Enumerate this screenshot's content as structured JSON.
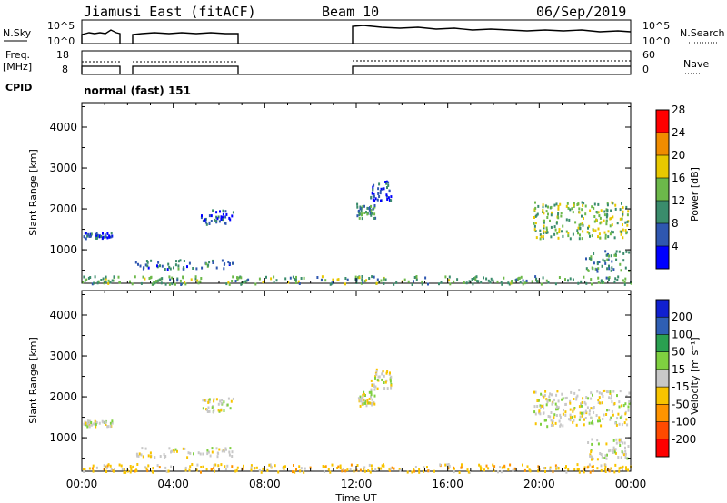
{
  "header": {
    "station": "Jiamusi East (fitACF)",
    "beam": "Beam 10",
    "date": "06/Sep/2019"
  },
  "strips": {
    "nsky_label": "N.Sky",
    "nsky_ticks": [
      "10^5",
      "10^0"
    ],
    "nsearch_label": "N.Search",
    "nsearch_ticks": [
      "10^5",
      "10^0"
    ],
    "freq_label_1": "Freq.",
    "freq_label_2": "[MHz]",
    "freq_ticks": [
      "18",
      "8"
    ],
    "nave_label": "Nave",
    "nave_ticks": [
      "60",
      "0"
    ],
    "cpid_label": "CPID",
    "cpid_value": "normal (fast) 151"
  },
  "chart_data": [
    {
      "type": "heatmap",
      "panel": "power",
      "xlabel": "Time UT",
      "ylabel": "Slant Range [km]",
      "x_range_hours": [
        0,
        24
      ],
      "y_range_km": [
        180,
        4600
      ],
      "yticks": [
        "1000",
        "2000",
        "3000",
        "4000"
      ],
      "colorbar_label": "Power [dB]",
      "colorbar_ticks": [
        "4",
        "8",
        "12",
        "16",
        "20",
        "24",
        "28"
      ],
      "colorbar_colors": [
        "#0000ff",
        "#2f57b0",
        "#3a8c6c",
        "#6cb84a",
        "#e8c800",
        "#f08c00",
        "#ff0000"
      ],
      "regions": [
        {
          "t0": 0.05,
          "t1": 1.3,
          "r0": 1300,
          "r1": 1450,
          "value": 8
        },
        {
          "t0": 2.3,
          "t1": 6.6,
          "r0": 550,
          "r1": 780,
          "value": 10
        },
        {
          "t0": 5.2,
          "t1": 6.6,
          "r0": 1650,
          "r1": 2000,
          "value": 8
        },
        {
          "t0": 12.0,
          "t1": 12.8,
          "r0": 1800,
          "r1": 2150,
          "value": 12
        },
        {
          "t0": 12.6,
          "t1": 13.5,
          "r0": 2200,
          "r1": 2700,
          "value": 8
        },
        {
          "t0": 19.7,
          "t1": 23.9,
          "r0": 1300,
          "r1": 2200,
          "value": 16
        },
        {
          "t0": 22.0,
          "t1": 23.9,
          "r0": 500,
          "r1": 1000,
          "value": 12
        },
        {
          "t0": 0.0,
          "t1": 24.0,
          "r0": 180,
          "r1": 380,
          "value": 14
        }
      ]
    },
    {
      "type": "heatmap",
      "panel": "velocity",
      "xlabel": "Time UT",
      "ylabel": "Slant Range [km]",
      "x_range_hours": [
        0,
        24
      ],
      "y_range_km": [
        180,
        4600
      ],
      "yticks": [
        "1000",
        "2000",
        "3000",
        "4000"
      ],
      "colorbar_label": "Velocity [m s⁻¹]",
      "colorbar_ticks": [
        "-200",
        "-100",
        "-50",
        "-15",
        "15",
        "50",
        "100",
        "200"
      ],
      "colorbar_colors": [
        "#ff0000",
        "#ff4a00",
        "#ff9400",
        "#f8c400",
        "#c8c8c8",
        "#7fd040",
        "#2aa050",
        "#2f5fb4",
        "#1020d0"
      ],
      "regions": [
        {
          "t0": 0.05,
          "t1": 1.3,
          "r0": 1300,
          "r1": 1450,
          "value": 0
        },
        {
          "t0": 2.3,
          "t1": 6.6,
          "r0": 550,
          "r1": 780,
          "value": 0
        },
        {
          "t0": 5.2,
          "t1": 6.6,
          "r0": 1650,
          "r1": 2000,
          "value": 0
        },
        {
          "t0": 12.0,
          "t1": 12.8,
          "r0": 1800,
          "r1": 2150,
          "value": 0
        },
        {
          "t0": 12.6,
          "t1": 13.5,
          "r0": 2200,
          "r1": 2700,
          "value": 0
        },
        {
          "t0": 19.7,
          "t1": 23.9,
          "r0": 1300,
          "r1": 2200,
          "value": 0
        },
        {
          "t0": 22.0,
          "t1": 23.9,
          "r0": 500,
          "r1": 1000,
          "value": 0
        },
        {
          "t0": 0.0,
          "t1": 24.0,
          "r0": 180,
          "r1": 380,
          "value": -30
        }
      ]
    }
  ],
  "x_ticks": [
    "00:00",
    "04:00",
    "08:00",
    "12:00",
    "16:00",
    "20:00",
    "00:00"
  ],
  "x_axis_label": "Time UT"
}
